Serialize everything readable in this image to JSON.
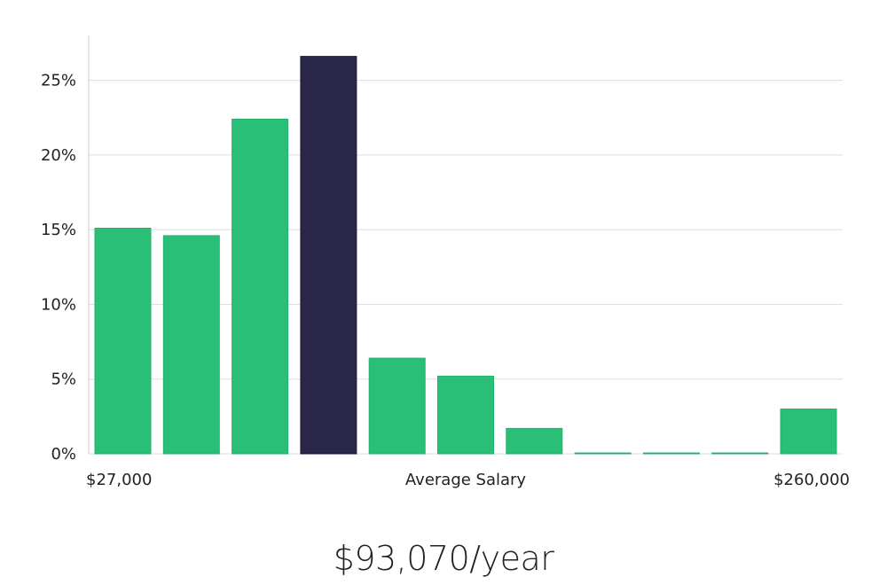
{
  "chart_data": {
    "type": "bar",
    "x_min_label": "$27,000",
    "x_center_label": "Average Salary",
    "x_max_label": "$260,000",
    "y_ticks": [
      "0%",
      "5%",
      "10%",
      "15%",
      "20%",
      "25%"
    ],
    "ylim": [
      0,
      28
    ],
    "values": [
      15.1,
      14.6,
      22.4,
      26.6,
      6.4,
      5.2,
      1.7,
      0.05,
      0.05,
      0.05,
      3.0
    ],
    "highlight_index": 3,
    "colors": {
      "bar": "#2abf77",
      "highlight": "#2a2748",
      "grid": "#dddddd",
      "axis": "#cccccc"
    },
    "grid": true
  },
  "salary_text": "$93,070/year"
}
